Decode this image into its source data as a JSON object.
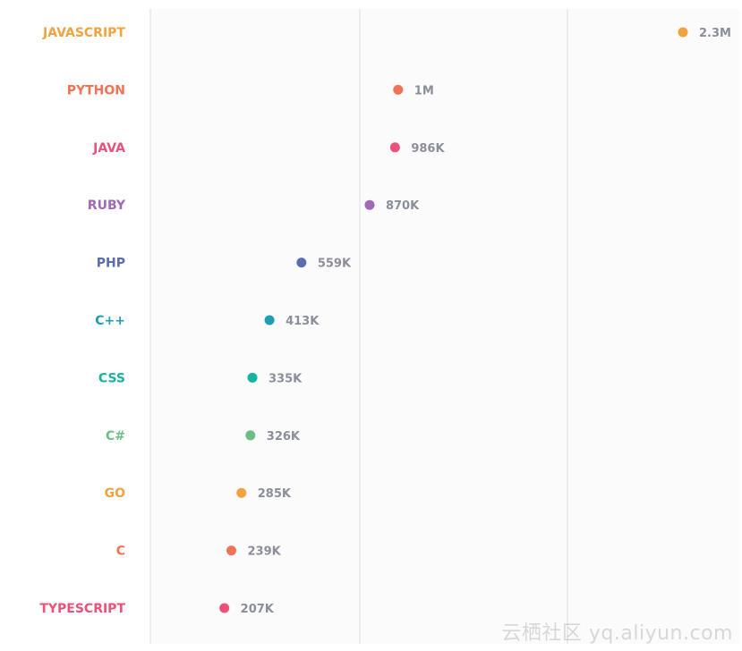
{
  "chart_data": {
    "type": "bar",
    "title": "",
    "xlabel": "",
    "ylabel": "",
    "categories": [
      "JAVASCRIPT",
      "PYTHON",
      "JAVA",
      "RUBY",
      "PHP",
      "C++",
      "CSS",
      "C#",
      "GO",
      "C",
      "TYPESCRIPT"
    ],
    "values": [
      2300000,
      1000000,
      986000,
      870000,
      559000,
      413000,
      335000,
      326000,
      285000,
      239000,
      207000
    ],
    "value_labels": [
      "2.3M",
      "1M",
      "986K",
      "870K",
      "559K",
      "413K",
      "335K",
      "326K",
      "285K",
      "239K",
      "207K"
    ],
    "colors": [
      "#f0a340",
      "#f07355",
      "#e8527b",
      "#a068b5",
      "#5a6db0",
      "#1e9fb0",
      "#16b3a0",
      "#6dbe84",
      "#f2a240",
      "#f07358",
      "#e8527b"
    ],
    "xlim": [
      0,
      2500000
    ],
    "grid": true,
    "orientation": "horizontal"
  },
  "watermark": "云栖社区 yq.aliyun.com"
}
